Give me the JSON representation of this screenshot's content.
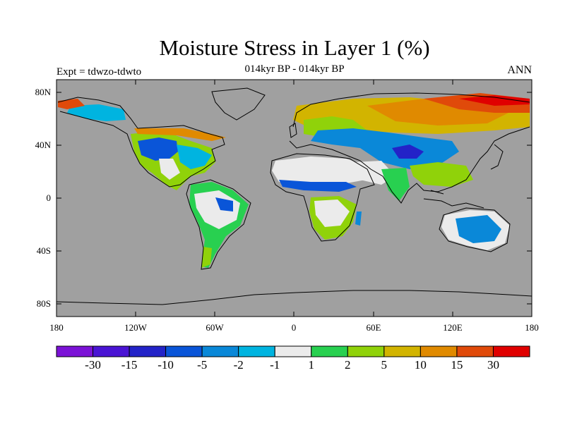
{
  "map": {
    "title": "Moisture Stress in Layer 1 (%)",
    "subtitle": "014kyr BP - 014kyr BP",
    "experiment": "Expt = tdwzo-tdwto",
    "season": "ANN",
    "projection": "cylindrical equidistant, global",
    "land_color": "#a0a0a0",
    "ocean_color": "#a0a0a0",
    "y_tick_labels": [
      "80N",
      "40N",
      "0",
      "40S",
      "80S"
    ],
    "x_tick_labels": [
      "180",
      "120W",
      "60W",
      "0",
      "60E",
      "120E",
      "180"
    ]
  },
  "colorbar": {
    "colors": [
      "#7b12d6",
      "#4a14d4",
      "#2323c8",
      "#0a55d8",
      "#0a88d8",
      "#00b4e0",
      "#ebebeb",
      "#28d050",
      "#90d20a",
      "#d2b400",
      "#e08a00",
      "#e04a0a",
      "#e00000"
    ],
    "labels": [
      "-30",
      "-15",
      "-10",
      "-5",
      "-2",
      "-1",
      "1",
      "2",
      "5",
      "10",
      "15",
      "30"
    ]
  }
}
